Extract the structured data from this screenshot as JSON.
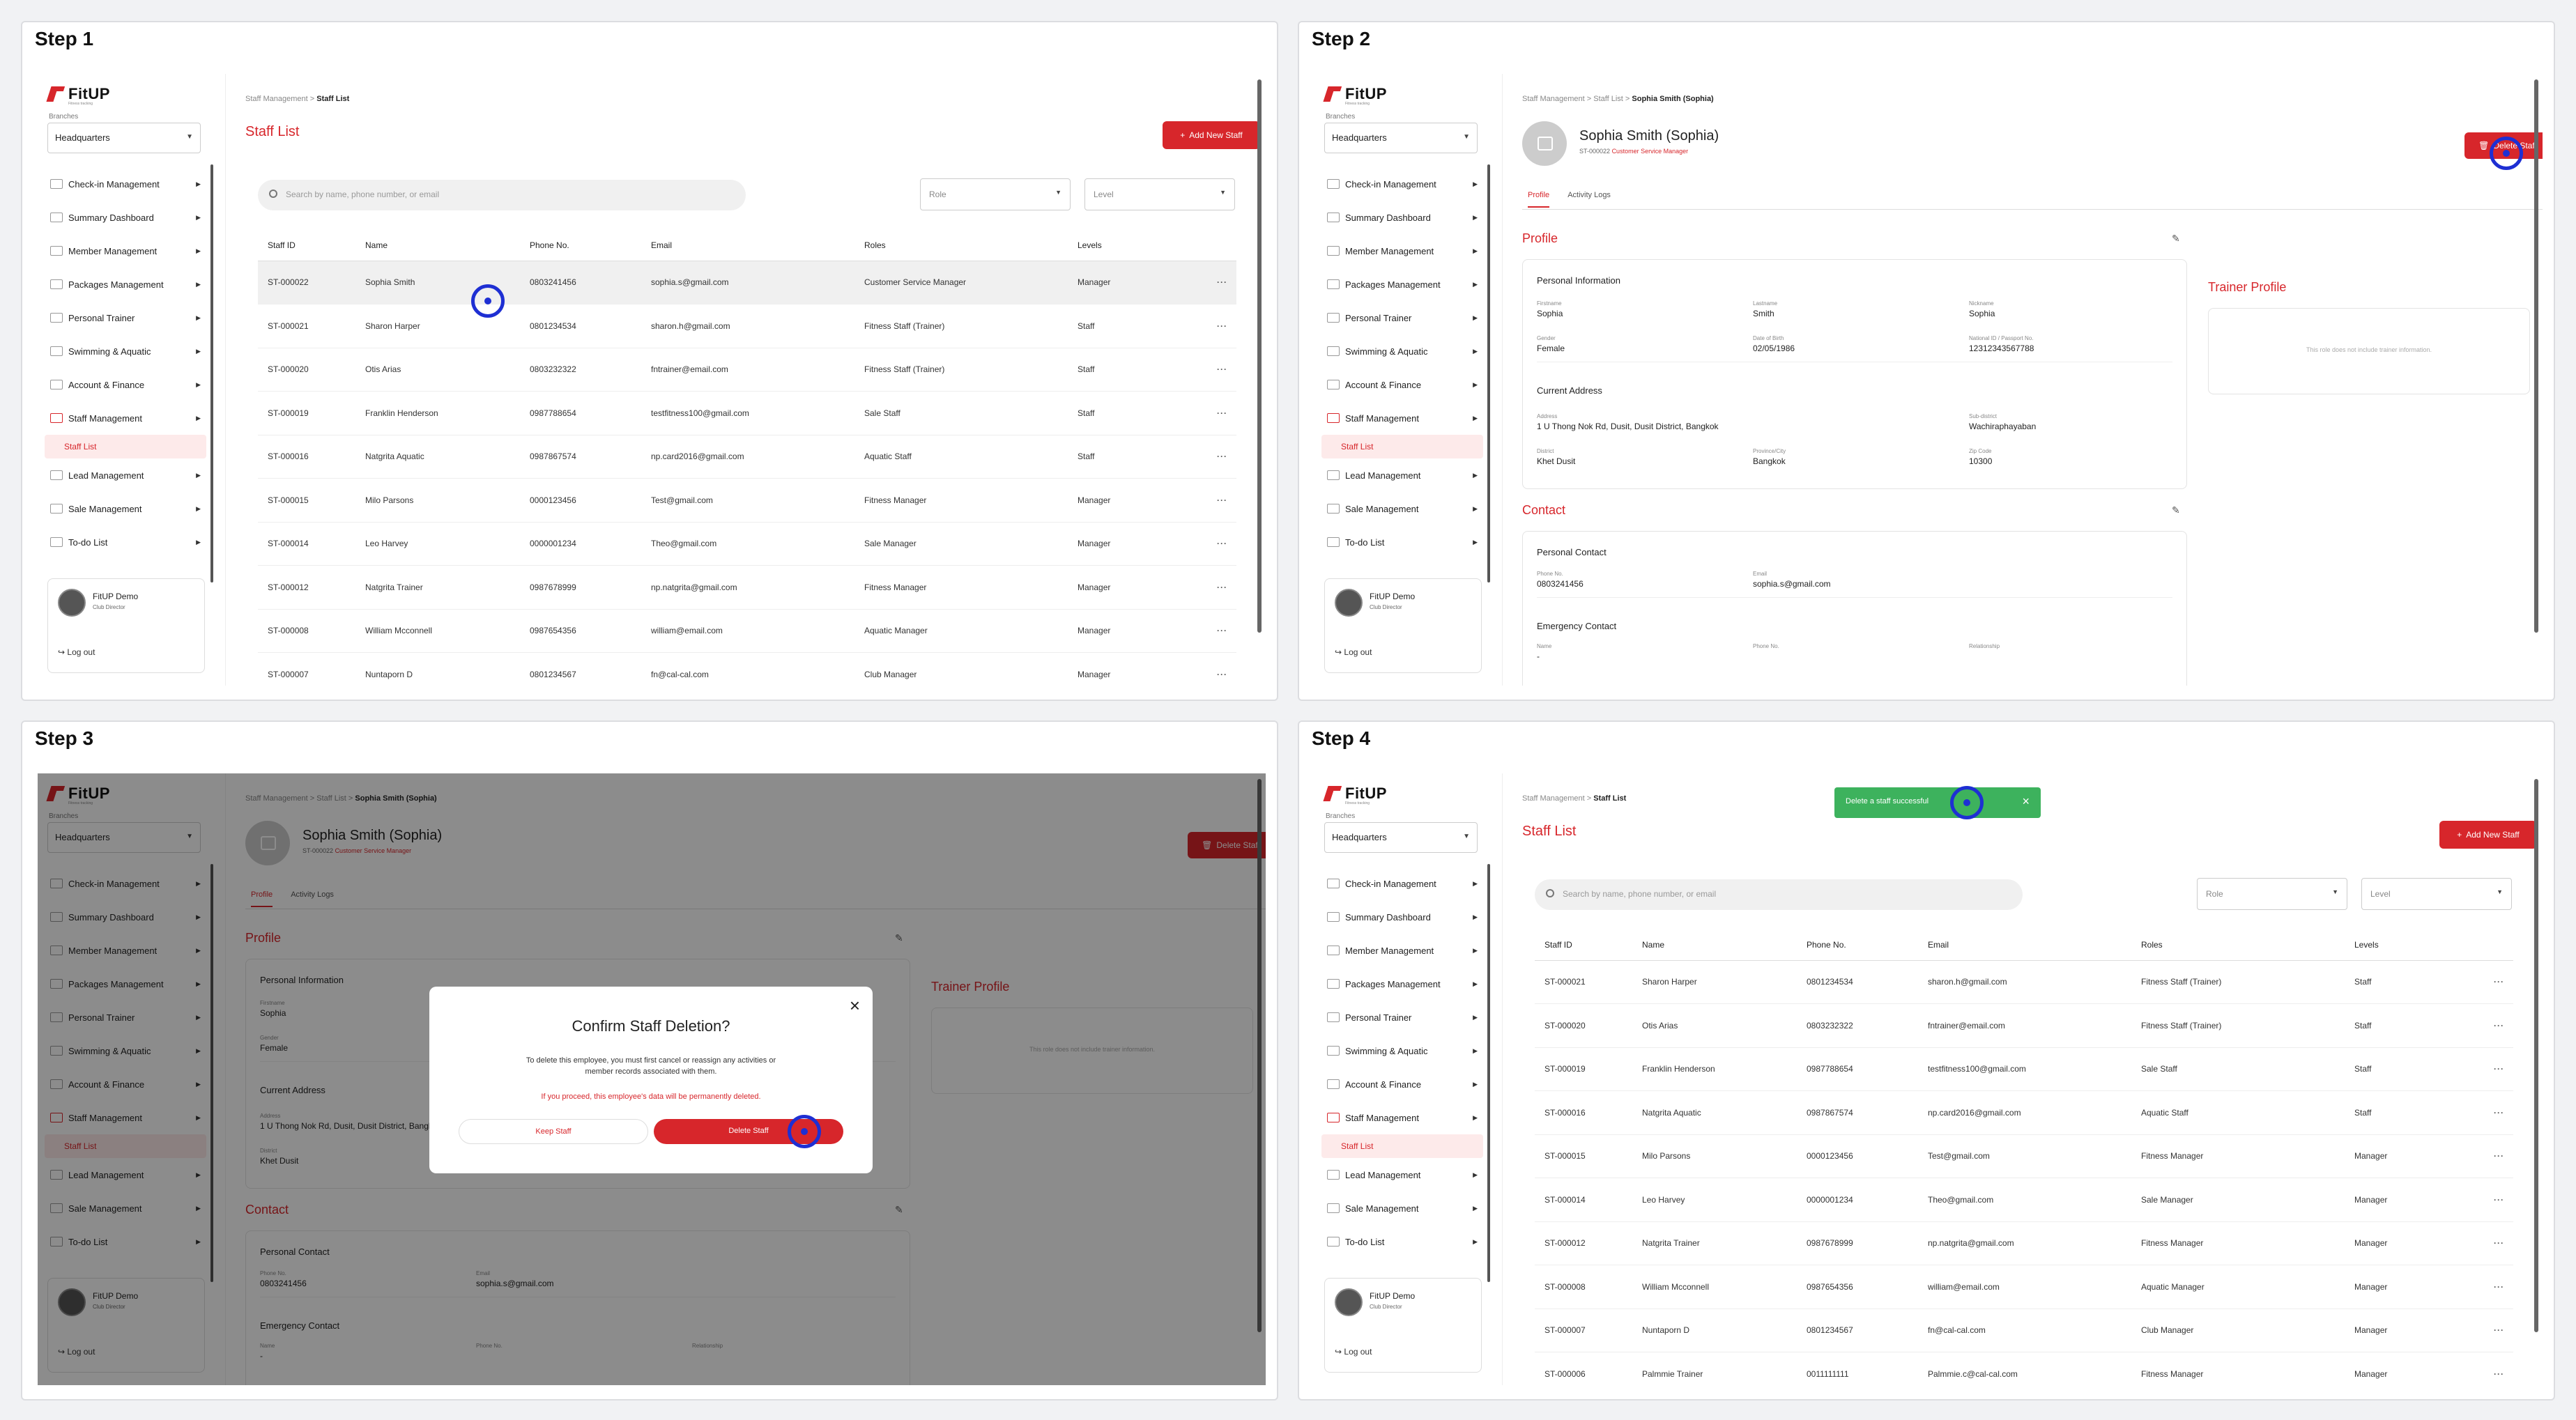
{
  "steps": [
    "Step 1",
    "Step 2",
    "Step 3",
    "Step 4"
  ],
  "brand": {
    "name": "FitUP",
    "tagline": "Fitness tracking",
    "accent": "#d7262b",
    "success": "#3db25d",
    "cursor": "#1e2fd3"
  },
  "sidebar": {
    "branch_label": "Branches",
    "branch_value": "Headquarters",
    "items": [
      {
        "label": "Check-in Management",
        "icon": "check-in-icon"
      },
      {
        "label": "Summary Dashboard",
        "icon": "dashboard-icon"
      },
      {
        "label": "Member Management",
        "icon": "member-icon"
      },
      {
        "label": "Packages Management",
        "icon": "package-icon"
      },
      {
        "label": "Personal Trainer",
        "icon": "trainer-icon"
      },
      {
        "label": "Swimming & Aquatic",
        "icon": "swim-icon"
      },
      {
        "label": "Account & Finance",
        "icon": "finance-icon"
      },
      {
        "label": "Staff Management",
        "icon": "staff-icon"
      },
      {
        "label": "Lead Management",
        "icon": "lead-icon"
      },
      {
        "label": "Sale Management",
        "icon": "sale-icon"
      },
      {
        "label": "To-do List",
        "icon": "todo-icon"
      }
    ],
    "submenu": "Staff List",
    "user": {
      "name": "FitUP Demo",
      "role": "Club Director",
      "logout": "Log out"
    }
  },
  "list": {
    "breadcrumb_root": "Staff Management",
    "breadcrumb_current": "Staff List",
    "title": "Staff List",
    "add_button": "Add New Staff",
    "search_placeholder": "Search by name, phone number, or email",
    "role_placeholder": "Role",
    "level_placeholder": "Level",
    "headers": [
      "Staff ID",
      "Name",
      "Phone No.",
      "Email",
      "Roles",
      "Levels"
    ],
    "rows_step1": [
      [
        "ST-000022",
        "Sophia Smith",
        "0803241456",
        "sophia.s@gmail.com",
        "Customer Service Manager",
        "Manager"
      ],
      [
        "ST-000021",
        "Sharon Harper",
        "0801234534",
        "sharon.h@gmail.com",
        "Fitness Staff (Trainer)",
        "Staff"
      ],
      [
        "ST-000020",
        "Otis Arias",
        "0803232322",
        "fntrainer@email.com",
        "Fitness Staff (Trainer)",
        "Staff"
      ],
      [
        "ST-000019",
        "Franklin Henderson",
        "0987788654",
        "testfitness100@gmail.com",
        "Sale Staff",
        "Staff"
      ],
      [
        "ST-000016",
        "Natgrita Aquatic",
        "0987867574",
        "np.card2016@gmail.com",
        "Aquatic Staff",
        "Staff"
      ],
      [
        "ST-000015",
        "Milo Parsons",
        "0000123456",
        "Test@gmail.com",
        "Fitness Manager",
        "Manager"
      ],
      [
        "ST-000014",
        "Leo Harvey",
        "0000001234",
        "Theo@gmail.com",
        "Sale Manager",
        "Manager"
      ],
      [
        "ST-000012",
        "Natgrita Trainer",
        "0987678999",
        "np.natgrita@gmail.com",
        "Fitness Manager",
        "Manager"
      ],
      [
        "ST-000008",
        "William Mcconnell",
        "0987654356",
        "william@email.com",
        "Aquatic Manager",
        "Manager"
      ],
      [
        "ST-000007",
        "Nuntaporn D",
        "0801234567",
        "fn@cal-cal.com",
        "Club Manager",
        "Manager"
      ]
    ],
    "rows_step4": [
      [
        "ST-000021",
        "Sharon Harper",
        "0801234534",
        "sharon.h@gmail.com",
        "Fitness Staff (Trainer)",
        "Staff"
      ],
      [
        "ST-000020",
        "Otis Arias",
        "0803232322",
        "fntrainer@email.com",
        "Fitness Staff (Trainer)",
        "Staff"
      ],
      [
        "ST-000019",
        "Franklin Henderson",
        "0987788654",
        "testfitness100@gmail.com",
        "Sale Staff",
        "Staff"
      ],
      [
        "ST-000016",
        "Natgrita Aquatic",
        "0987867574",
        "np.card2016@gmail.com",
        "Aquatic Staff",
        "Staff"
      ],
      [
        "ST-000015",
        "Milo Parsons",
        "0000123456",
        "Test@gmail.com",
        "Fitness Manager",
        "Manager"
      ],
      [
        "ST-000014",
        "Leo Harvey",
        "0000001234",
        "Theo@gmail.com",
        "Sale Manager",
        "Manager"
      ],
      [
        "ST-000012",
        "Natgrita Trainer",
        "0987678999",
        "np.natgrita@gmail.com",
        "Fitness Manager",
        "Manager"
      ],
      [
        "ST-000008",
        "William Mcconnell",
        "0987654356",
        "william@email.com",
        "Aquatic Manager",
        "Manager"
      ],
      [
        "ST-000007",
        "Nuntaporn D",
        "0801234567",
        "fn@cal-cal.com",
        "Club Manager",
        "Manager"
      ],
      [
        "ST-000006",
        "Palmmie Trainer",
        "0011111111",
        "Palmmie.c@cal-cal.com",
        "Fitness Manager",
        "Manager"
      ]
    ],
    "more": "···"
  },
  "profile": {
    "breadcrumb_mid": "Staff List",
    "breadcrumb_current": "Sophia Smith (Sophia)",
    "name": "Sophia Smith (Sophia)",
    "id": "ST-000022",
    "role": "Customer Service Manager",
    "delete_button": "Delete Staff",
    "tab_profile": "Profile",
    "tab_activity": "Activity Logs",
    "profile_title": "Profile",
    "personal_info": "Personal Information",
    "first_label": "Firstname",
    "first": "Sophia",
    "last_label": "Lastname",
    "last": "Smith",
    "nick_label": "Nickname",
    "nick": "Sophia",
    "gender_label": "Gender",
    "gender": "Female",
    "dob_label": "Date of Birth",
    "dob": "02/05/1986",
    "nid_label": "National ID / Passport No.",
    "nid": "12312343567788",
    "current_address": "Current Address",
    "addr_label": "Address",
    "addr": "1 U Thong Nok Rd, Dusit, Dusit District, Bangkok",
    "subdistrict_label": "Sub-district",
    "subdistrict": "Wachiraphayaban",
    "district_label": "District",
    "district": "Khet Dusit",
    "province_label": "Province/City",
    "province": "Bangkok",
    "zip_label": "Zip Code",
    "zip": "10300",
    "trainer_title": "Trainer Profile",
    "trainer_note": "This role does not include trainer information.",
    "contact_title": "Contact",
    "personal_contact": "Personal Contact",
    "phone_label": "Phone No.",
    "phone": "0803241456",
    "email_label": "Email",
    "email": "sophia.s@gmail.com",
    "emergency": "Emergency Contact",
    "em_name_label": "Name",
    "em_name": "-",
    "em_phone_label": "Phone No.",
    "em_rel_label": "Relationship"
  },
  "modal": {
    "title": "Confirm Staff Deletion?",
    "body": "To delete this employee, you must first cancel or reassign any activities or member records associated with them.",
    "warning": "If you proceed, this employee's data will be permanently deleted.",
    "keep": "Keep Staff",
    "delete": "Delete Staff"
  },
  "toast": {
    "message": "Delete a staff successful"
  }
}
